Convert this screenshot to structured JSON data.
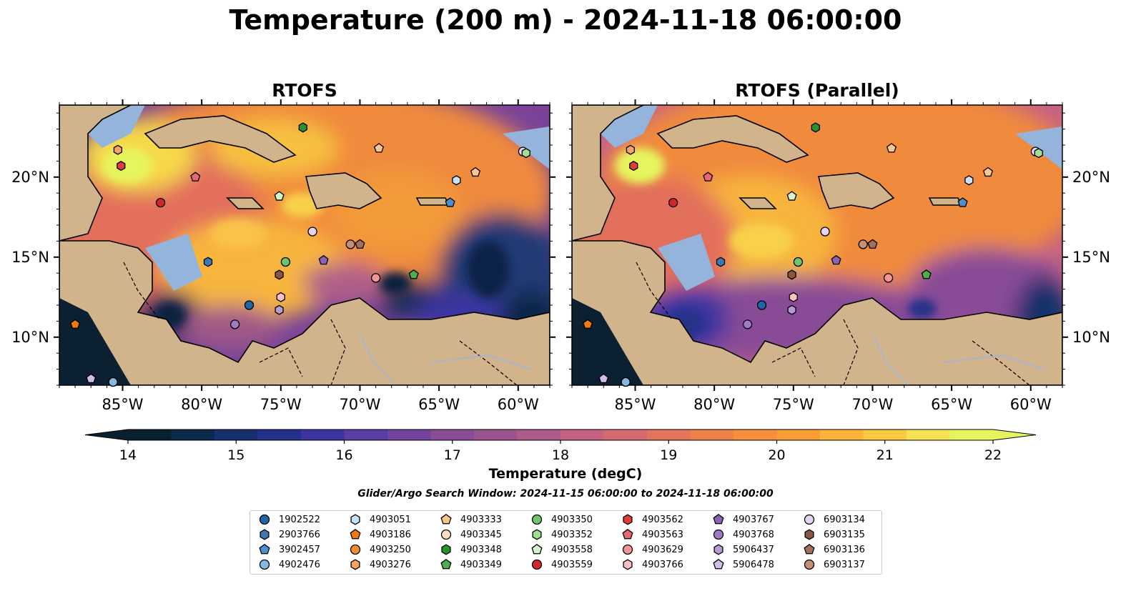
{
  "title": "Temperature (200 m) - 2024-11-18 06:00:00",
  "panels": [
    {
      "title": "RTOFS"
    },
    {
      "title": "RTOFS (Parallel)"
    }
  ],
  "colors": {
    "land": "#d2b48c",
    "shelf": "#94b4dc",
    "coast": "#000000",
    "river": "#9eb4e0"
  },
  "chart_data": {
    "type": "heatmap",
    "variable": "Temperature (200 m)",
    "lon_ticks": [
      "85°W",
      "80°W",
      "75°W",
      "70°W",
      "65°W",
      "60°W"
    ],
    "lat_ticks": [
      "20°N",
      "15°N",
      "10°N"
    ],
    "lon_range": [
      -89,
      -58
    ],
    "lat_range": [
      7,
      24.5
    ],
    "colorbar": {
      "label": "Temperature (degC)",
      "min": 14,
      "max": 22,
      "step": 0.5,
      "ticks": [
        "14",
        "15",
        "16",
        "17",
        "18",
        "19",
        "20",
        "21",
        "22"
      ],
      "extend": "both",
      "colors": [
        "#092030",
        "#0c2a4c",
        "#15306a",
        "#25308a",
        "#3b34a0",
        "#5a3da4",
        "#74439e",
        "#894c96",
        "#9a5590",
        "#ad5c8a",
        "#c56282",
        "#d66a72",
        "#e4745e",
        "#ef8048",
        "#f68e3c",
        "#f99e36",
        "#fab33a",
        "#f8ca42",
        "#f5e255",
        "#e6f55d"
      ]
    },
    "search_window": "Glider/Argo Search Window: 2024-11-15 06:00:00 to 2024-11-18 06:00:00",
    "legend_columns": 7,
    "legend": [
      {
        "id": "1902522",
        "marker": "circle",
        "color": "#1f65a8"
      },
      {
        "id": "2903766",
        "marker": "hexagon",
        "color": "#3e78b4"
      },
      {
        "id": "3902457",
        "marker": "pentagon",
        "color": "#4f8fd0"
      },
      {
        "id": "4902476",
        "marker": "circle",
        "color": "#86b8e4"
      },
      {
        "id": "4903051",
        "marker": "hexagon",
        "color": "#c7e2f4"
      },
      {
        "id": "4903186",
        "marker": "pentagon",
        "color": "#f07a10"
      },
      {
        "id": "4903250",
        "marker": "circle",
        "color": "#f38b30"
      },
      {
        "id": "4903276",
        "marker": "hexagon",
        "color": "#f6a460"
      },
      {
        "id": "4903333",
        "marker": "pentagon",
        "color": "#f8c58c"
      },
      {
        "id": "4903345",
        "marker": "circle",
        "color": "#fbdfc1"
      },
      {
        "id": "4903348",
        "marker": "hexagon",
        "color": "#2a922d"
      },
      {
        "id": "4903349",
        "marker": "pentagon",
        "color": "#4caf4a"
      },
      {
        "id": "4903350",
        "marker": "circle",
        "color": "#6fc56a"
      },
      {
        "id": "4903352",
        "marker": "hexagon",
        "color": "#a0df92"
      },
      {
        "id": "4903558",
        "marker": "pentagon",
        "color": "#d3f3c8"
      },
      {
        "id": "4903559",
        "marker": "circle",
        "color": "#d2262a"
      },
      {
        "id": "4903562",
        "marker": "hexagon",
        "color": "#e23c3c"
      },
      {
        "id": "4903563",
        "marker": "pentagon",
        "color": "#ea6670"
      },
      {
        "id": "4903629",
        "marker": "circle",
        "color": "#f49494"
      },
      {
        "id": "4903766",
        "marker": "hexagon",
        "color": "#f9c1c1"
      },
      {
        "id": "4903767",
        "marker": "pentagon",
        "color": "#8b60b8"
      },
      {
        "id": "4903768",
        "marker": "circle",
        "color": "#a079c8"
      },
      {
        "id": "5906437",
        "marker": "hexagon",
        "color": "#b69bd6"
      },
      {
        "id": "5906478",
        "marker": "pentagon",
        "color": "#d1bde8"
      },
      {
        "id": "6903134",
        "marker": "circle",
        "color": "#e3d2f0"
      },
      {
        "id": "6903135",
        "marker": "hexagon",
        "color": "#8c5640"
      },
      {
        "id": "6903136",
        "marker": "pentagon",
        "color": "#a4705a"
      },
      {
        "id": "6903137",
        "marker": "circle",
        "color": "#c48e78"
      }
    ],
    "floats": [
      {
        "id": "4903276",
        "lon": -85.3,
        "lat": 21.7
      },
      {
        "id": "4903562",
        "lon": -85.1,
        "lat": 20.7
      },
      {
        "id": "4903563",
        "lon": -80.4,
        "lat": 20.0
      },
      {
        "id": "4903559",
        "lon": -82.6,
        "lat": 18.4
      },
      {
        "id": "2903766",
        "lon": -79.6,
        "lat": 14.7
      },
      {
        "id": "1902522",
        "lon": -77.0,
        "lat": 12.0
      },
      {
        "id": "4903768",
        "lon": -77.9,
        "lat": 10.8
      },
      {
        "id": "4903348",
        "lon": -73.6,
        "lat": 23.1
      },
      {
        "id": "4903558",
        "lon": -75.1,
        "lat": 18.8
      },
      {
        "id": "4903350",
        "lon": -74.7,
        "lat": 14.7
      },
      {
        "id": "6903135",
        "lon": -75.1,
        "lat": 13.9
      },
      {
        "id": "4903766",
        "lon": -75.0,
        "lat": 12.5
      },
      {
        "id": "5906437",
        "lon": -75.1,
        "lat": 11.7
      },
      {
        "id": "6903134",
        "lon": -73.0,
        "lat": 16.6
      },
      {
        "id": "4903767",
        "lon": -72.3,
        "lat": 14.8
      },
      {
        "id": "6903137",
        "lon": -70.6,
        "lat": 15.8
      },
      {
        "id": "6903136",
        "lon": -70.0,
        "lat": 15.8
      },
      {
        "id": "4903333",
        "lon": -68.8,
        "lat": 21.8
      },
      {
        "id": "4903629",
        "lon": -69.0,
        "lat": 13.7
      },
      {
        "id": "4903349",
        "lon": -66.6,
        "lat": 13.9
      },
      {
        "id": "3902457",
        "lon": -64.3,
        "lat": 18.4
      },
      {
        "id": "4903051",
        "lon": -63.9,
        "lat": 19.8
      },
      {
        "id": "4903333",
        "lon": -62.7,
        "lat": 20.3
      },
      {
        "id": "6903134",
        "lon": -59.7,
        "lat": 21.6
      },
      {
        "id": "4903352",
        "lon": -59.5,
        "lat": 21.5
      },
      {
        "id": "4903186",
        "lon": -88.0,
        "lat": 10.8
      },
      {
        "id": "5906478",
        "lon": -87.0,
        "lat": 7.4
      },
      {
        "id": "4902476",
        "lon": -85.6,
        "lat": 7.2
      }
    ]
  }
}
